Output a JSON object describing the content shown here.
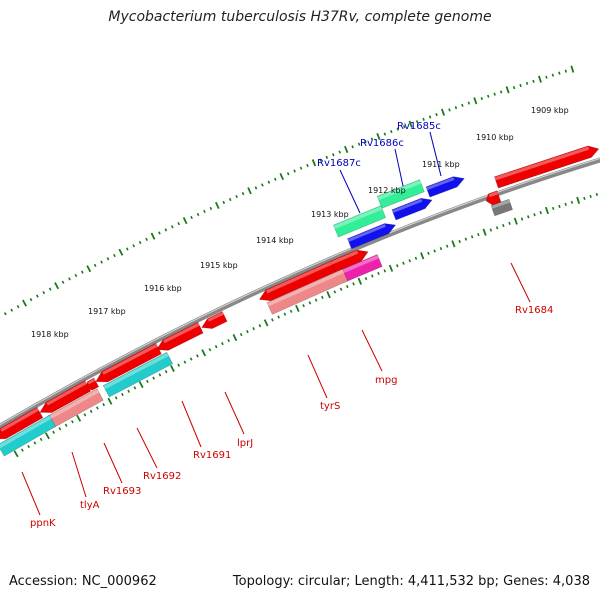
{
  "title": "Mycobacterium tuberculosis H37Rv, complete genome",
  "footer": {
    "accession": "Accession: NC_000962",
    "topology": "Topology: circular; Length: 4,411,532 bp; Genes: 4,038"
  },
  "colors": {
    "backbone": "#888888",
    "tick": "#1a7a1a",
    "cds": "#ee0000",
    "feature_teal": "#22cccc",
    "feature_pink": "#ee8888",
    "feature_magenta": "#ee22aa",
    "feature_green": "#33ee99",
    "feature_blue": "#1111ee",
    "feature_gray": "#777777",
    "label_forward": "#0000bb",
    "label_reverse": "#cc0000"
  },
  "kbp_labels": [
    "1909 kbp",
    "1910 kbp",
    "1911 kbp",
    "1912 kbp",
    "1913 kbp",
    "1914 kbp",
    "1915 kbp",
    "1916 kbp",
    "1917 kbp",
    "1918 kbp"
  ],
  "gene_labels": {
    "forward": [
      "Rv1685c",
      "Rv1686c",
      "Rv1687c"
    ],
    "reverse": [
      "Rv1684",
      "mpg",
      "tyrS",
      "lprJ",
      "Rv1691",
      "Rv1692",
      "Rv1693",
      "tlyA",
      "ppnK"
    ]
  }
}
